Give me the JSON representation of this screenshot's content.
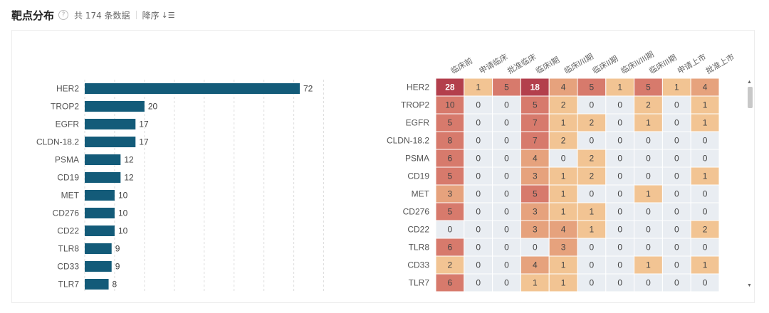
{
  "header": {
    "title": "靶点分布",
    "help_icon": "question-circle-icon",
    "count_text": "共 174 条数据",
    "sort_label": "降序",
    "sort_icon": "sort-descending-icon"
  },
  "colors": {
    "bar": "#135b79",
    "heat_zero": "#e9edf2",
    "heat_low": "#f2c493",
    "heat_mid": "#e6a27d",
    "heat_high": "#d77a6c",
    "heat_max": "#b33f4c"
  },
  "chart_data": [
    {
      "type": "bar",
      "orientation": "horizontal",
      "categories": [
        "HER2",
        "TROP2",
        "EGFR",
        "CLDN-18.2",
        "PSMA",
        "CD19",
        "MET",
        "CD276",
        "CD22",
        "TLR8",
        "CD33",
        "TLR7"
      ],
      "values": [
        72,
        20,
        17,
        17,
        12,
        12,
        10,
        10,
        10,
        9,
        9,
        8
      ],
      "xlim": [
        0,
        80
      ],
      "grid": "vertical-dashed"
    },
    {
      "type": "heatmap",
      "rows": [
        "HER2",
        "TROP2",
        "EGFR",
        "CLDN-18.2",
        "PSMA",
        "CD19",
        "MET",
        "CD276",
        "CD22",
        "TLR8",
        "CD33",
        "TLR7"
      ],
      "columns": [
        "临床前",
        "申请临床",
        "批准临床",
        "临床I期",
        "临床I/II期",
        "临床II期",
        "临床II/III期",
        "临床III期",
        "申请上市",
        "批准上市"
      ],
      "values": [
        [
          28,
          1,
          5,
          18,
          4,
          5,
          1,
          5,
          1,
          4
        ],
        [
          10,
          0,
          0,
          5,
          2,
          0,
          0,
          2,
          0,
          1
        ],
        [
          5,
          0,
          0,
          7,
          1,
          2,
          0,
          1,
          0,
          1
        ],
        [
          8,
          0,
          0,
          7,
          2,
          0,
          0,
          0,
          0,
          0
        ],
        [
          6,
          0,
          0,
          4,
          0,
          2,
          0,
          0,
          0,
          0
        ],
        [
          5,
          0,
          0,
          3,
          1,
          2,
          0,
          0,
          0,
          1
        ],
        [
          3,
          0,
          0,
          5,
          1,
          0,
          0,
          1,
          0,
          0
        ],
        [
          5,
          0,
          0,
          3,
          1,
          1,
          0,
          0,
          0,
          0
        ],
        [
          0,
          0,
          0,
          3,
          4,
          1,
          0,
          0,
          0,
          2
        ],
        [
          6,
          0,
          0,
          0,
          3,
          0,
          0,
          0,
          0,
          0
        ],
        [
          2,
          0,
          0,
          4,
          1,
          0,
          0,
          1,
          0,
          1
        ],
        [
          6,
          0,
          0,
          1,
          1,
          0,
          0,
          0,
          0,
          0
        ]
      ]
    }
  ]
}
